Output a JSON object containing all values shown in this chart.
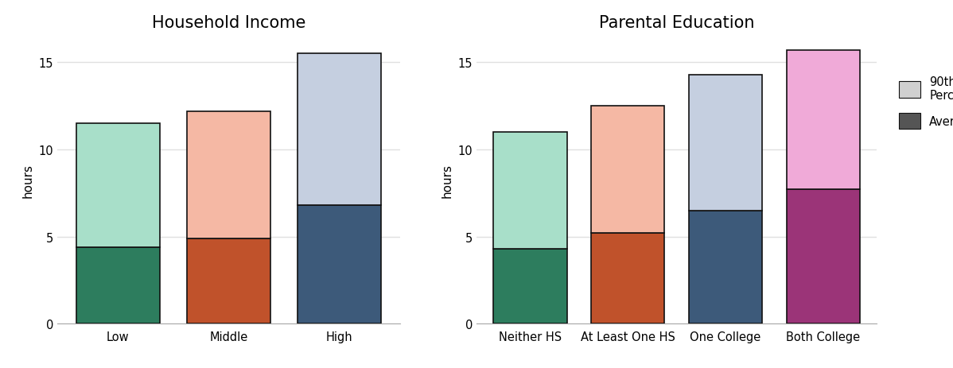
{
  "income_categories": [
    "Low",
    "Middle",
    "High"
  ],
  "income_average": [
    4.4,
    4.9,
    6.8
  ],
  "income_total": [
    11.5,
    12.2,
    15.5
  ],
  "income_avg_colors": [
    "#2d7d5e",
    "#c0522b",
    "#3d5a7a"
  ],
  "income_top_colors": [
    "#a8dfc9",
    "#f5b8a4",
    "#c5cfe0"
  ],
  "edu_categories": [
    "Neither HS",
    "At Least One HS",
    "One College",
    "Both College"
  ],
  "edu_average": [
    4.3,
    5.2,
    6.5,
    7.7
  ],
  "edu_total": [
    11.0,
    12.5,
    14.3,
    15.7
  ],
  "edu_avg_colors": [
    "#2d7d5e",
    "#c0522b",
    "#3d5a7a",
    "#9b3478"
  ],
  "edu_top_colors": [
    "#a8dfc9",
    "#f5b8a4",
    "#c5cfe0",
    "#f0aad8"
  ],
  "title1": "Household Income",
  "title2": "Parental Education",
  "ylabel": "hours",
  "ylim": [
    0,
    16.5
  ],
  "yticks": [
    0,
    5,
    10,
    15
  ],
  "legend_top_color": "#d0d0d0",
  "legend_avg_color": "#555555",
  "bar_width": 0.75,
  "bar_edge_color": "#111111",
  "bar_edge_width": 1.2,
  "bg_color": "#ffffff",
  "grid_color": "#e0e0e0",
  "title_fontsize": 15,
  "label_fontsize": 11,
  "tick_fontsize": 10.5
}
